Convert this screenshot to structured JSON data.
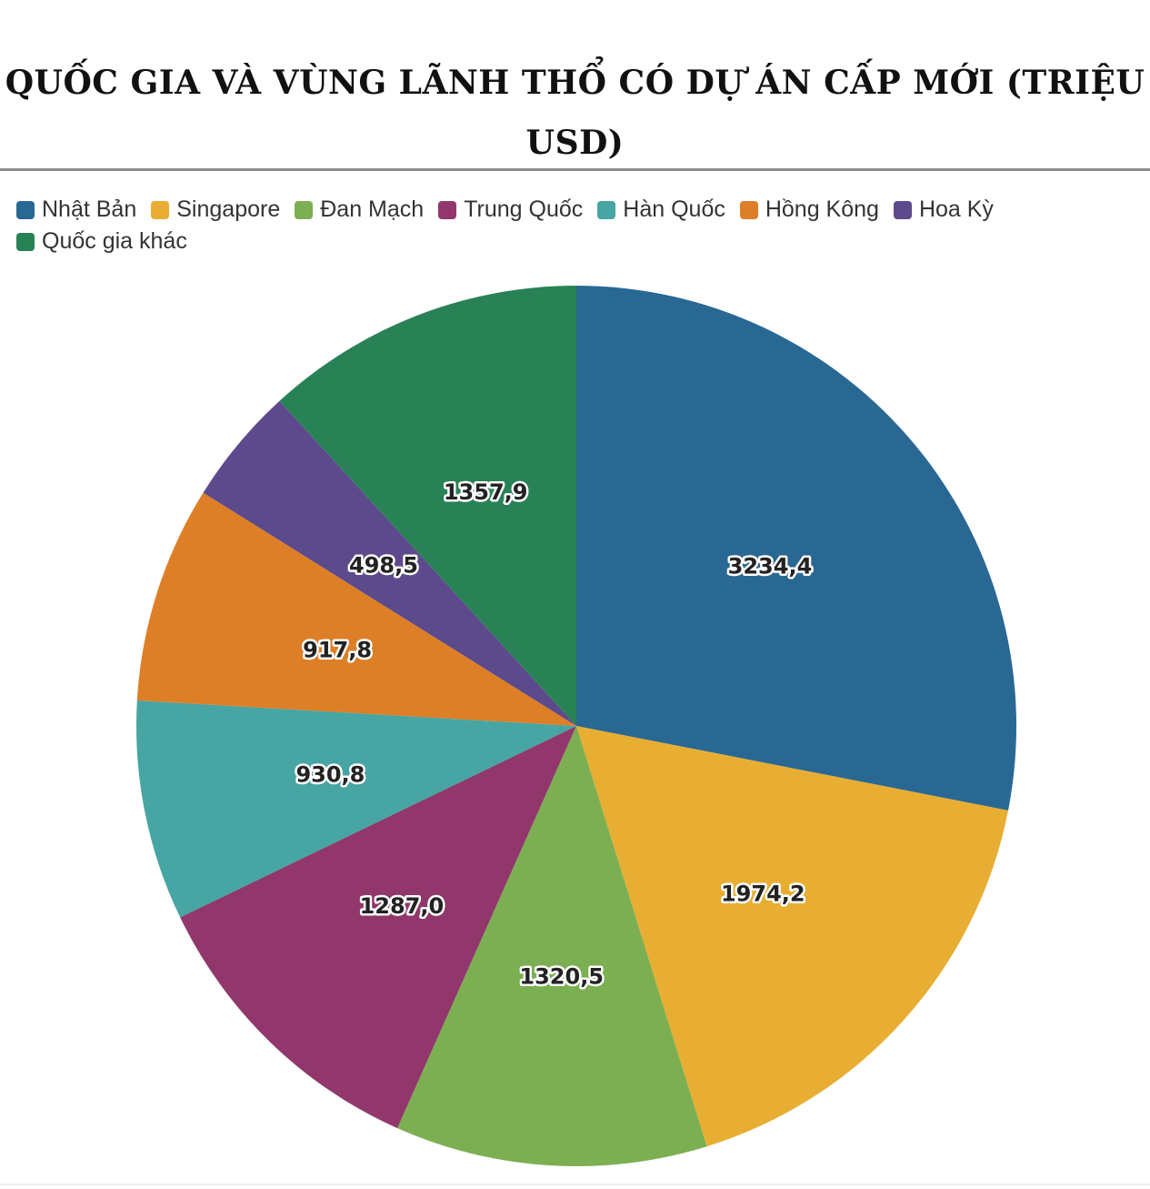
{
  "title": "QUỐC GIA VÀ VÙNG LÃNH THỔ CÓ DỰ ÁN CẤP MỚI (TRIỆU USD)",
  "chart_data": {
    "type": "pie",
    "title": "QUỐC GIA VÀ VÙNG LÃNH THỔ CÓ DỰ ÁN CẤP MỚI (TRIỆU USD)",
    "legend_position": "top",
    "slices": [
      {
        "label": "Nhật Bản",
        "value": 3234.4,
        "value_text": "3234,4",
        "color": "#2a6894"
      },
      {
        "label": "Singapore",
        "value": 1974.2,
        "value_text": "1974,2",
        "color": "#e8ae33"
      },
      {
        "label": "Đan Mạch",
        "value": 1320.5,
        "value_text": "1320,5",
        "color": "#7baf51"
      },
      {
        "label": "Trung Quốc",
        "value": 1287.0,
        "value_text": "1287,0",
        "color": "#91376c"
      },
      {
        "label": "Hàn Quốc",
        "value": 930.8,
        "value_text": "930,8",
        "color": "#47a5a3"
      },
      {
        "label": "Hồng Kông",
        "value": 917.8,
        "value_text": "917,8",
        "color": "#dd7f27"
      },
      {
        "label": "Hoa Kỳ",
        "value": 498.5,
        "value_text": "498,5",
        "color": "#5c4a8c"
      },
      {
        "label": "Quốc gia khác",
        "value": 1357.9,
        "value_text": "1357,9",
        "color": "#298256"
      }
    ]
  }
}
